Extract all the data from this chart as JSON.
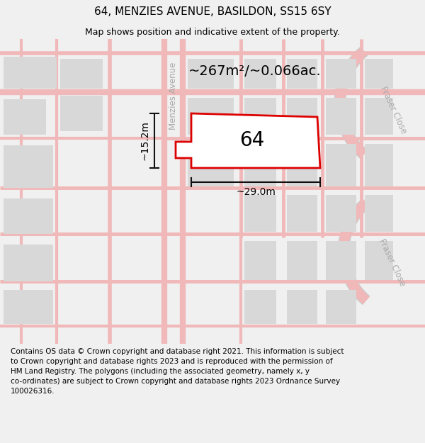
{
  "title": "64, MENZIES AVENUE, BASILDON, SS15 6SY",
  "subtitle": "Map shows position and indicative extent of the property.",
  "footer": "Contains OS data © Crown copyright and database right 2021. This information is subject\nto Crown copyright and database rights 2023 and is reproduced with the permission of\nHM Land Registry. The polygons (including the associated geometry, namely x, y\nco-ordinates) are subject to Crown copyright and database rights 2023 Ordnance Survey\n100026316.",
  "area_label": "~267m²/~0.066ac.",
  "number_label": "64",
  "width_label": "~29.0m",
  "height_label": "~15.2m",
  "street_menzies": "Menzies Avenue",
  "street_fraser1": "Fraser Close",
  "street_fraser2": "Fraser Close",
  "bg_color": "#f0f0f0",
  "map_bg": "#f5f5f5",
  "road_color": "#f0b8b8",
  "road_outline_color": "#e8a8a8",
  "block_color": "#d8d8d8",
  "plot_edge_color": "#dd0000",
  "plot_fill_color": "#ffffff",
  "dim_color": "#111111",
  "title_fontsize": 11,
  "subtitle_fontsize": 9,
  "footer_fontsize": 7.5,
  "area_fontsize": 14,
  "number_fontsize": 20,
  "dim_fontsize": 10,
  "street_fontsize": 8.5
}
